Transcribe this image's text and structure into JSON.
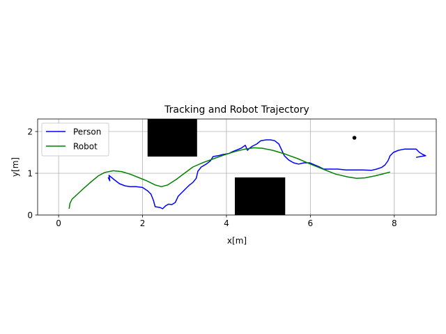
{
  "chart_data": {
    "type": "line",
    "title": "Tracking and Robot Trajectory",
    "xlabel": "x[m]",
    "ylabel": "y[m]",
    "xlim": [
      -0.5,
      9.0
    ],
    "ylim": [
      0,
      2.3
    ],
    "xticks": [
      0,
      2,
      4,
      6,
      8
    ],
    "yticks": [
      0,
      1,
      2
    ],
    "xtick_labels": [
      "0",
      "2",
      "4",
      "6",
      "8"
    ],
    "ytick_labels": [
      "0",
      "1",
      "2"
    ],
    "grid": true,
    "legend": {
      "position": "upper-left",
      "entries": [
        "Person",
        "Robot"
      ]
    },
    "series": [
      {
        "name": "Person",
        "color": "#0000ff",
        "points": [
          [
            1.18,
            0.9
          ],
          [
            1.22,
            0.82
          ],
          [
            1.2,
            0.95
          ],
          [
            1.32,
            0.85
          ],
          [
            1.45,
            0.75
          ],
          [
            1.58,
            0.7
          ],
          [
            1.7,
            0.68
          ],
          [
            1.85,
            0.68
          ],
          [
            2.0,
            0.66
          ],
          [
            2.12,
            0.58
          ],
          [
            2.2,
            0.5
          ],
          [
            2.26,
            0.35
          ],
          [
            2.3,
            0.2
          ],
          [
            2.42,
            0.18
          ],
          [
            2.48,
            0.15
          ],
          [
            2.55,
            0.22
          ],
          [
            2.62,
            0.26
          ],
          [
            2.7,
            0.25
          ],
          [
            2.78,
            0.3
          ],
          [
            2.85,
            0.45
          ],
          [
            2.95,
            0.55
          ],
          [
            3.05,
            0.65
          ],
          [
            3.12,
            0.72
          ],
          [
            3.2,
            0.78
          ],
          [
            3.28,
            0.88
          ],
          [
            3.32,
            1.05
          ],
          [
            3.4,
            1.15
          ],
          [
            3.52,
            1.22
          ],
          [
            3.62,
            1.3
          ],
          [
            3.68,
            1.4
          ],
          [
            3.8,
            1.42
          ],
          [
            3.92,
            1.45
          ],
          [
            4.05,
            1.47
          ],
          [
            4.15,
            1.52
          ],
          [
            4.25,
            1.56
          ],
          [
            4.35,
            1.6
          ],
          [
            4.45,
            1.67
          ],
          [
            4.5,
            1.55
          ],
          [
            4.55,
            1.6
          ],
          [
            4.62,
            1.65
          ],
          [
            4.72,
            1.7
          ],
          [
            4.82,
            1.78
          ],
          [
            4.95,
            1.8
          ],
          [
            5.05,
            1.8
          ],
          [
            5.15,
            1.78
          ],
          [
            5.25,
            1.7
          ],
          [
            5.32,
            1.55
          ],
          [
            5.38,
            1.42
          ],
          [
            5.48,
            1.32
          ],
          [
            5.6,
            1.25
          ],
          [
            5.72,
            1.22
          ],
          [
            5.85,
            1.25
          ],
          [
            5.98,
            1.25
          ],
          [
            6.1,
            1.2
          ],
          [
            6.22,
            1.15
          ],
          [
            6.32,
            1.1
          ],
          [
            6.45,
            1.1
          ],
          [
            6.65,
            1.1
          ],
          [
            6.85,
            1.08
          ],
          [
            7.05,
            1.08
          ],
          [
            7.25,
            1.08
          ],
          [
            7.45,
            1.07
          ],
          [
            7.58,
            1.1
          ],
          [
            7.7,
            1.14
          ],
          [
            7.78,
            1.2
          ],
          [
            7.85,
            1.3
          ],
          [
            7.9,
            1.42
          ],
          [
            7.98,
            1.5
          ],
          [
            8.1,
            1.55
          ],
          [
            8.25,
            1.58
          ],
          [
            8.4,
            1.58
          ],
          [
            8.52,
            1.58
          ],
          [
            8.6,
            1.5
          ],
          [
            8.68,
            1.45
          ],
          [
            8.75,
            1.42
          ],
          [
            8.62,
            1.4
          ],
          [
            8.52,
            1.38
          ]
        ]
      },
      {
        "name": "Robot",
        "color": "#008000",
        "points": [
          [
            0.25,
            0.15
          ],
          [
            0.27,
            0.28
          ],
          [
            0.32,
            0.38
          ],
          [
            0.45,
            0.5
          ],
          [
            0.6,
            0.64
          ],
          [
            0.78,
            0.8
          ],
          [
            0.95,
            0.94
          ],
          [
            1.1,
            1.02
          ],
          [
            1.3,
            1.06
          ],
          [
            1.5,
            1.04
          ],
          [
            1.7,
            0.98
          ],
          [
            1.9,
            0.9
          ],
          [
            2.1,
            0.82
          ],
          [
            2.3,
            0.72
          ],
          [
            2.45,
            0.68
          ],
          [
            2.6,
            0.72
          ],
          [
            2.8,
            0.85
          ],
          [
            3.0,
            1.0
          ],
          [
            3.2,
            1.15
          ],
          [
            3.45,
            1.26
          ],
          [
            3.7,
            1.35
          ],
          [
            3.95,
            1.44
          ],
          [
            4.2,
            1.52
          ],
          [
            4.45,
            1.58
          ],
          [
            4.65,
            1.61
          ],
          [
            4.85,
            1.6
          ],
          [
            5.1,
            1.55
          ],
          [
            5.4,
            1.46
          ],
          [
            5.7,
            1.35
          ],
          [
            6.0,
            1.22
          ],
          [
            6.3,
            1.1
          ],
          [
            6.6,
            0.98
          ],
          [
            6.9,
            0.91
          ],
          [
            7.1,
            0.88
          ],
          [
            7.3,
            0.89
          ],
          [
            7.55,
            0.94
          ],
          [
            7.75,
            0.99
          ],
          [
            7.9,
            1.03
          ]
        ]
      }
    ],
    "obstacles": [
      {
        "x0": 2.12,
        "x1": 3.3,
        "y0": 1.4,
        "y1": 2.3,
        "color": "#000000"
      },
      {
        "x0": 4.2,
        "x1": 5.4,
        "y0": 0.0,
        "y1": 0.9,
        "color": "#000000"
      }
    ],
    "markers": [
      {
        "x": 7.05,
        "y": 1.85,
        "color": "#000000"
      }
    ]
  }
}
